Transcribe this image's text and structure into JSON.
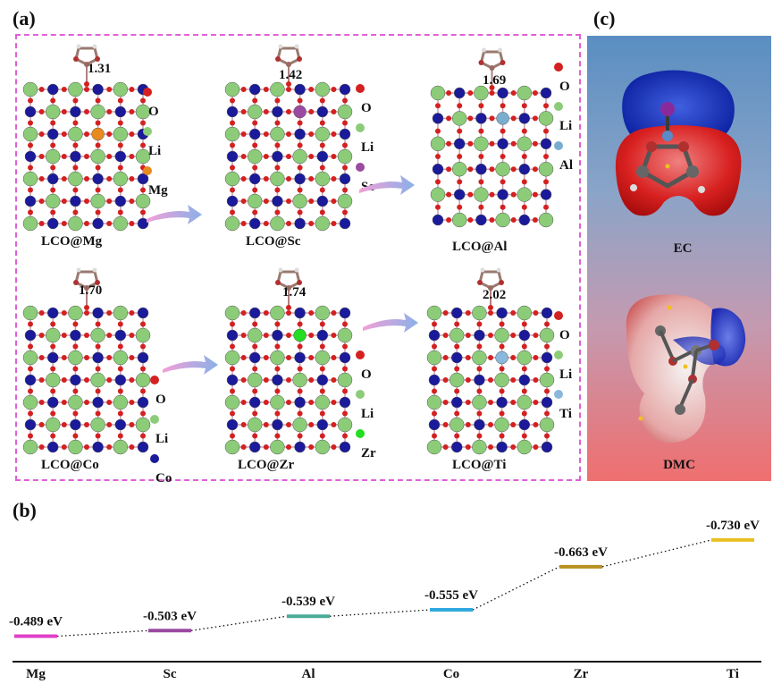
{
  "panels": {
    "a": "(a)",
    "b": "(b)",
    "c": "(c)"
  },
  "structures": [
    {
      "name": "LCO@Mg",
      "energy": "1.31",
      "dopant_color": "#e88a20",
      "legend": [
        "O",
        "Li",
        "Mg"
      ]
    },
    {
      "name": "LCO@Sc",
      "energy": "1.42",
      "dopant_color": "#9a4aa0",
      "legend": [
        "O",
        "Li",
        "Sc"
      ]
    },
    {
      "name": "LCO@Al",
      "energy": "1.69",
      "dopant_color": "#7aaed0",
      "legend": [
        "O",
        "Li",
        "Al"
      ]
    },
    {
      "name": "LCO@Co",
      "energy": "1.70",
      "dopant_color": "#1a1a9a",
      "legend": [
        "O",
        "Li",
        "Co"
      ]
    },
    {
      "name": "LCO@Zr",
      "energy": "1.74",
      "dopant_color": "#22dd22",
      "legend": [
        "O",
        "Li",
        "Zr"
      ]
    },
    {
      "name": "LCO@Ti",
      "energy": "2.02",
      "dopant_color": "#8ab8dc",
      "legend": [
        "O",
        "Li",
        "Ti"
      ]
    }
  ],
  "atom_colors": {
    "O": "#d42020",
    "Li": "#8ccc78",
    "Co": "#1a1a9a"
  },
  "molecules": [
    {
      "label": "EC"
    },
    {
      "label": "DMC"
    }
  ],
  "chart_data": {
    "type": "energy-level diagram",
    "title": "",
    "categories": [
      "Mg",
      "Sc",
      "Al",
      "Co",
      "Zr",
      "Ti"
    ],
    "values": [
      -0.489,
      -0.503,
      -0.539,
      -0.555,
      -0.663,
      -0.73
    ],
    "value_labels": [
      "-0.489 eV",
      "-0.503 eV",
      "-0.539 eV",
      "-0.555 eV",
      "-0.663 eV",
      "-0.730 eV"
    ],
    "level_colors": [
      "#e040c8",
      "#9a4aa0",
      "#4aaa98",
      "#30a8e0",
      "#b89020",
      "#e8c020"
    ],
    "ylim": [
      -0.75,
      -0.47
    ],
    "connector": "dotted"
  }
}
